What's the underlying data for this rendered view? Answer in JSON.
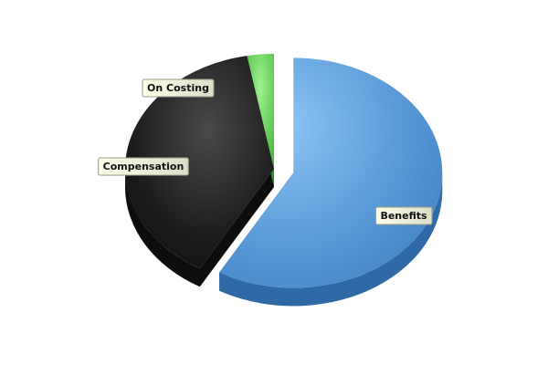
{
  "chart_data": {
    "type": "pie",
    "style": "3d-exploded",
    "title": "",
    "legend": "none",
    "slices": [
      {
        "label": "Benefits",
        "value": 58.3,
        "color": "#5b9bd8",
        "exploded": true
      },
      {
        "label": "Compensation",
        "value": 38.8,
        "color": "#1e1e1e",
        "exploded": false
      },
      {
        "label": "On Costing",
        "value": 2.9,
        "color": "#44c23c",
        "exploded": false
      }
    ]
  }
}
